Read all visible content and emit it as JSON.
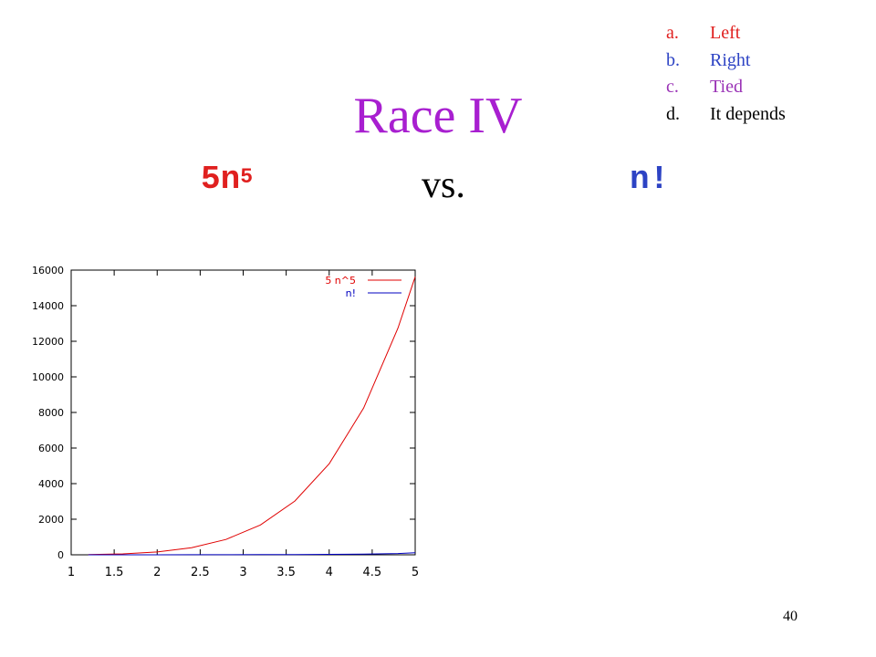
{
  "answers": [
    {
      "letter": "a.",
      "text": "Left",
      "color": "#e0201f"
    },
    {
      "letter": "b.",
      "text": "Right",
      "color": "#2d43c4"
    },
    {
      "letter": "c.",
      "text": "Tied",
      "color": "#9a33b6"
    },
    {
      "letter": "d.",
      "text": "It depends",
      "color": "#000000"
    }
  ],
  "title": "Race IV",
  "title_color": "#a81fd0",
  "left_expr": {
    "base": "5n",
    "exponent": "5",
    "color": "#e0201f"
  },
  "vs_label": "vs.",
  "right_expr": {
    "text": "n!",
    "color": "#2d43c4"
  },
  "page_number": "40",
  "chart_data": {
    "type": "line",
    "xlim": [
      1,
      5
    ],
    "ylim": [
      0,
      16000
    ],
    "x_ticks": [
      1,
      1.5,
      2,
      2.5,
      3,
      3.5,
      4,
      4.5,
      5
    ],
    "x_tick_labels": [
      "1",
      "1.5",
      "2",
      "2.5",
      "3",
      "3.5",
      "4",
      "4.5",
      "5"
    ],
    "y_ticks": [
      0,
      2000,
      4000,
      6000,
      8000,
      10000,
      12000,
      14000,
      16000
    ],
    "y_tick_labels": [
      "0",
      "2000",
      "4000",
      "6000",
      "8000",
      "10000",
      "12000",
      "14000",
      "16000"
    ],
    "grid": false,
    "legend_position": "top-right",
    "series": [
      {
        "name": "5 n^5",
        "color": "#e00000",
        "x": [
          1.2,
          1.6,
          2.0,
          2.4,
          2.8,
          3.2,
          3.6,
          4.0,
          4.4,
          4.8,
          5.0
        ],
        "y": [
          12,
          52,
          160,
          398,
          861,
          1678,
          3023,
          5120,
          8246,
          12741,
          15625
        ]
      },
      {
        "name": "n!",
        "color": "#0000c0",
        "x": [
          1.2,
          1.6,
          2.0,
          2.4,
          2.8,
          3.2,
          3.6,
          4.0,
          4.4,
          4.8,
          5.0
        ],
        "y": [
          1.1,
          1.4,
          2,
          3.2,
          5.4,
          9.5,
          17,
          24,
          40,
          72,
          120
        ]
      }
    ]
  }
}
